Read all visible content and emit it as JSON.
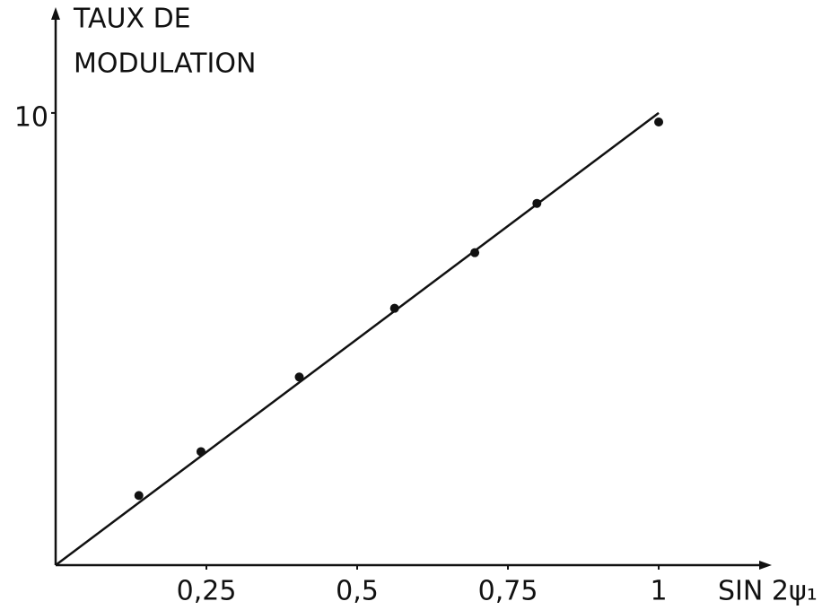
{
  "chart_data": {
    "type": "scatter",
    "ylabel": [
      "TAUX DE",
      "MODULATION"
    ],
    "xlabel": "SIN 2ψ₁",
    "x": [
      0.138,
      0.241,
      0.404,
      0.562,
      0.695,
      0.798,
      1.0
    ],
    "values": [
      1.54,
      2.51,
      4.16,
      5.68,
      6.91,
      8.0,
      9.8
    ],
    "color": "#111111",
    "fit_line": {
      "x": [
        0,
        1
      ],
      "y": [
        0,
        10
      ]
    },
    "xlim": [
      0,
      1.18
    ],
    "ylim": [
      0,
      12.2
    ],
    "xticks": [
      {
        "value": 0.25,
        "label": "0,25"
      },
      {
        "value": 0.5,
        "label": "0,5"
      },
      {
        "value": 0.75,
        "label": "0,75"
      },
      1
    ],
    "yticks": [
      10
    ]
  }
}
